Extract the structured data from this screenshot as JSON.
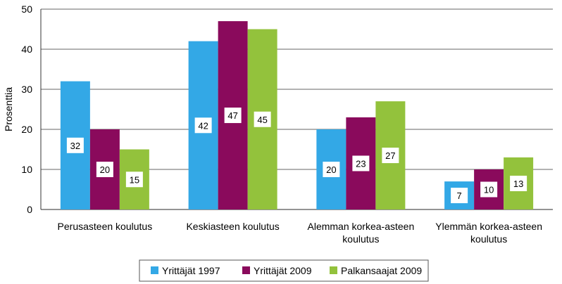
{
  "chart_data": {
    "type": "bar",
    "ylabel": "Prosenttia",
    "ylim": [
      0,
      50
    ],
    "yticks": [
      0,
      10,
      20,
      30,
      40,
      50
    ],
    "grid": true,
    "legend_position": "bottom",
    "categories": [
      [
        "Perusasteen koulutus"
      ],
      [
        "Keskiasteen koulutus"
      ],
      [
        "Alemman korkea-asteen",
        "koulutus"
      ],
      [
        "Ylemmän korkea-asteen",
        "koulutus"
      ]
    ],
    "series": [
      {
        "name": "Yrittäjät 1997",
        "color": "#33a8e6",
        "values": [
          32,
          42,
          20,
          7
        ]
      },
      {
        "name": "Yrittäjät 2009",
        "color": "#8a0a5c",
        "values": [
          20,
          47,
          23,
          10
        ]
      },
      {
        "name": "Palkansaajat 2009",
        "color": "#93c23c",
        "values": [
          15,
          45,
          27,
          13
        ]
      }
    ]
  }
}
